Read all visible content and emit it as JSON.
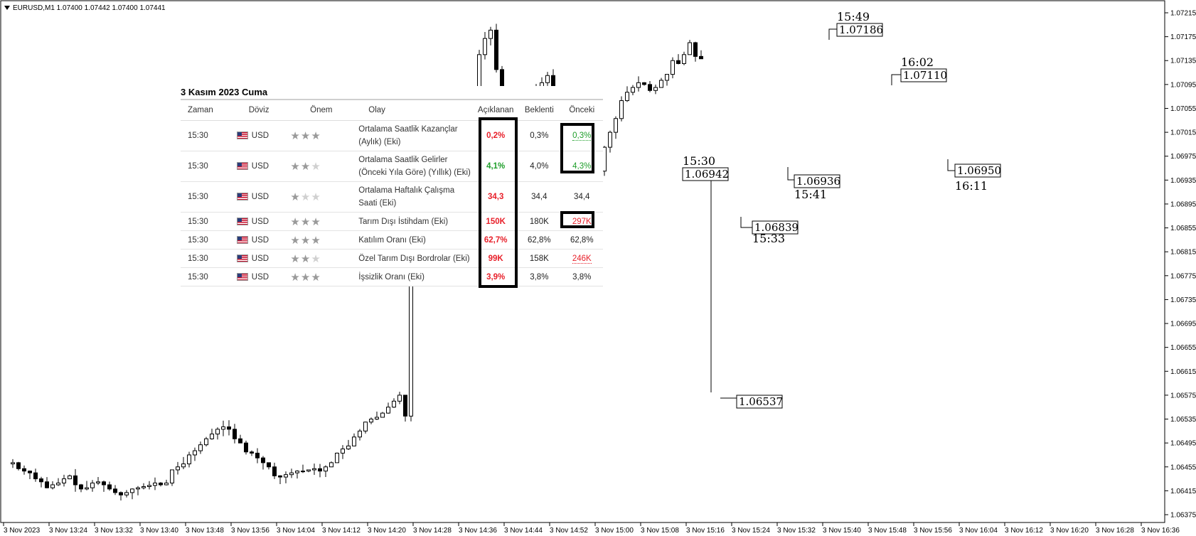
{
  "symbol_header": {
    "text": "EURUSD,M1  1.07400 1.07442 1.07400 1.07441"
  },
  "chart_data": {
    "type": "candlestick",
    "symbol": "EURUSD",
    "timeframe": "M1",
    "ohlc_header": {
      "open": 1.074,
      "high": 1.07442,
      "low": 1.074,
      "close": 1.07441
    },
    "y_ticks": [
      "1.07215",
      "1.07175",
      "1.07135",
      "1.07095",
      "1.07055",
      "1.07015",
      "1.06975",
      "1.06935",
      "1.06895",
      "1.06855",
      "1.06815",
      "1.06775",
      "1.06735",
      "1.06695",
      "1.06655",
      "1.06615",
      "1.06575",
      "1.06535",
      "1.06495",
      "1.06455",
      "1.06415",
      "1.06375"
    ],
    "x_ticks": [
      "3 Nov 2023",
      "3 Nov 13:24",
      "3 Nov 13:32",
      "3 Nov 13:40",
      "3 Nov 13:48",
      "3 Nov 13:56",
      "3 Nov 14:04",
      "3 Nov 14:12",
      "3 Nov 14:20",
      "3 Nov 14:28",
      "3 Nov 14:36",
      "3 Nov 14:44",
      "3 Nov 14:52",
      "3 Nov 15:00",
      "3 Nov 15:08",
      "3 Nov 15:16",
      "3 Nov 15:24",
      "3 Nov 15:32",
      "3 Nov 15:40",
      "3 Nov 15:48",
      "3 Nov 15:56",
      "3 Nov 16:04",
      "3 Nov 16:12",
      "3 Nov 16:20",
      "3 Nov 16:28",
      "3 Nov 16:36"
    ],
    "ylim": [
      1.06355,
      1.07235
    ],
    "price_path": [
      1.0646,
      1.06462,
      1.06452,
      1.06448,
      1.06445,
      1.06435,
      1.0643,
      1.0642,
      1.06425,
      1.06428,
      1.06435,
      1.0644,
      1.06425,
      1.06418,
      1.0642,
      1.06428,
      1.0643,
      1.06425,
      1.06418,
      1.06412,
      1.06408,
      1.06412,
      1.06418,
      1.0642,
      1.06422,
      1.06424,
      1.06428,
      1.06425,
      1.06428,
      1.0645,
      1.06455,
      1.0646,
      1.06475,
      1.06482,
      1.06492,
      1.06502,
      1.0651,
      1.06518,
      1.06522,
      1.06518,
      1.06502,
      1.06495,
      1.0648,
      1.06478,
      1.0647,
      1.06462,
      1.06455,
      1.0644,
      1.06438,
      1.06442,
      1.06445,
      1.06448,
      1.06448,
      1.0645,
      1.06452,
      1.06448,
      1.06455,
      1.06462,
      1.06478,
      1.06485,
      1.0649,
      1.06505,
      1.06515,
      1.0653,
      1.06535,
      1.06538,
      1.06545,
      1.06555,
      1.06565,
      1.06575,
      1.0654,
      1.06942,
      1.0685,
      1.06839,
      1.06875,
      1.06905,
      1.06975,
      1.07005,
      1.06936,
      1.06942,
      1.0696,
      1.0705,
      1.07085,
      1.07145,
      1.07172,
      1.07186,
      1.0712,
      1.0707,
      1.07058,
      1.07048,
      1.07062,
      1.0707,
      1.0708,
      1.07088,
      1.07098,
      1.0711,
      1.07075,
      1.07065,
      1.0707,
      1.0704,
      1.0702,
      1.07,
      1.06975,
      1.0696,
      1.0695,
      1.0699,
      1.07015,
      1.07038,
      1.07068,
      1.07082,
      1.0709,
      1.07098,
      1.07095,
      1.07085,
      1.0709,
      1.07102,
      1.07112,
      1.07135,
      1.0713,
      1.07145,
      1.07165,
      1.07142,
      1.07138
    ],
    "annotations": [
      {
        "time": "15:30",
        "price": "1.06942"
      },
      {
        "price": "1.06537"
      },
      {
        "time": "15:33",
        "price": "1.06839"
      },
      {
        "time": "15:41",
        "price": "1.06936"
      },
      {
        "time": "15:49",
        "price": "1.07186"
      },
      {
        "time": "16:02",
        "price": "1.07110"
      },
      {
        "time": "16:11",
        "price": "1.06950"
      }
    ]
  },
  "calendar": {
    "title": "3 Kasım 2023 Cuma",
    "headers": {
      "zaman": "Zaman",
      "doviz": "Döviz",
      "onem": "Önem",
      "olay": "Olay",
      "aciklanan": "Açıklanan",
      "beklenti": "Beklenti",
      "onceki": "Önceki"
    },
    "rows": [
      {
        "zaman": "15:30",
        "doviz": "USD",
        "stars": 3,
        "olay": "Ortalama Saatlik Kazançlar (Aylık) (Eki)",
        "aciklanan": "0,2%",
        "aciklanan_color": "red",
        "beklenti": "0,3%",
        "onceki": "0,3%",
        "onceki_color": "green"
      },
      {
        "zaman": "15:30",
        "doviz": "USD",
        "stars": 2,
        "olay": "Ortalama Saatlik Gelirler (Önceki Yıla Göre) (Yıllık) (Eki)",
        "aciklanan": "4,1%",
        "aciklanan_color": "green",
        "beklenti": "4,0%",
        "onceki": "4,3%",
        "onceki_color": "green"
      },
      {
        "zaman": "15:30",
        "doviz": "USD",
        "stars": 1,
        "olay": "Ortalama Haftalık Çalışma Saati (Eki)",
        "aciklanan": "34,3",
        "aciklanan_color": "red",
        "beklenti": "34,4",
        "onceki": "34,4",
        "onceki_color": "dark"
      },
      {
        "zaman": "15:30",
        "doviz": "USD",
        "stars": 3,
        "olay": "Tarım Dışı İstihdam (Eki)",
        "aciklanan": "150K",
        "aciklanan_color": "red",
        "beklenti": "180K",
        "onceki": "297K",
        "onceki_color": "red"
      },
      {
        "zaman": "15:30",
        "doviz": "USD",
        "stars": 3,
        "olay": "Katılım Oranı (Eki)",
        "aciklanan": "62,7%",
        "aciklanan_color": "red",
        "beklenti": "62,8%",
        "onceki": "62,8%",
        "onceki_color": "dark"
      },
      {
        "zaman": "15:30",
        "doviz": "USD",
        "stars": 2,
        "olay": "Özel Tarım Dışı Bordrolar (Eki)",
        "aciklanan": "99K",
        "aciklanan_color": "red",
        "beklenti": "158K",
        "onceki": "246K",
        "onceki_color": "red"
      },
      {
        "zaman": "15:30",
        "doviz": "USD",
        "stars": 3,
        "olay": "İşsizlik Oranı (Eki)",
        "aciklanan": "3,9%",
        "aciklanan_color": "red",
        "beklenti": "3,8%",
        "onceki": "3,8%",
        "onceki_color": "dark"
      }
    ]
  }
}
